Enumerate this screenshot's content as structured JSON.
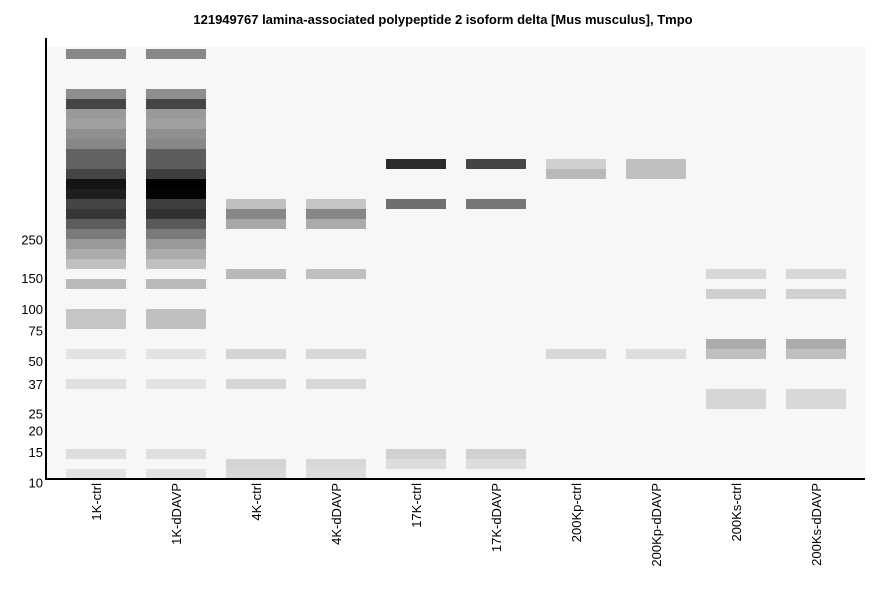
{
  "chart_data": {
    "type": "heatmap",
    "title": "121949767 lamina-associated polypeptide 2 isoform delta [Mus musculus], Tmpo",
    "xlabel": "",
    "ylabel": "",
    "y_scale": "log",
    "y_ticks": [
      250,
      150,
      100,
      75,
      50,
      37,
      25,
      20,
      15,
      10
    ],
    "categories": [
      "1K-ctrl",
      "1K-dDAVP",
      "4K-ctrl",
      "4K-dDAVP",
      "17K-ctrl",
      "17K-dDAVP",
      "200Kp-ctrl",
      "200Kp-dDAVP",
      "200Ks-ctrl",
      "200Ks-dDAVP"
    ],
    "colors": {
      "background": "#f6f7f6",
      "band": "#000000",
      "axis": "#000000"
    },
    "bands": [
      [
        {
          "row": 0,
          "intensity": 0.45
        },
        {
          "row": 4,
          "intensity": 0.42
        },
        {
          "row": 5,
          "intensity": 0.72
        },
        {
          "row": 6,
          "intensity": 0.38
        },
        {
          "row": 7,
          "intensity": 0.35
        },
        {
          "row": 8,
          "intensity": 0.42
        },
        {
          "row": 9,
          "intensity": 0.45
        },
        {
          "row": 10,
          "intensity": 0.6
        },
        {
          "row": 11,
          "intensity": 0.6
        },
        {
          "row": 12,
          "intensity": 0.72
        },
        {
          "row": 13,
          "intensity": 0.92
        },
        {
          "row": 14,
          "intensity": 0.88
        },
        {
          "row": 15,
          "intensity": 0.72
        },
        {
          "row": 16,
          "intensity": 0.78
        },
        {
          "row": 17,
          "intensity": 0.62
        },
        {
          "row": 18,
          "intensity": 0.5
        },
        {
          "row": 19,
          "intensity": 0.38
        },
        {
          "row": 20,
          "intensity": 0.3
        },
        {
          "row": 21,
          "intensity": 0.22
        },
        {
          "row": 23,
          "intensity": 0.25
        },
        {
          "row": 26,
          "intensity": 0.2
        },
        {
          "row": 27,
          "intensity": 0.2
        },
        {
          "row": 30,
          "intensity": 0.08
        },
        {
          "row": 33,
          "intensity": 0.09
        },
        {
          "row": 40,
          "intensity": 0.1
        },
        {
          "row": 42,
          "intensity": 0.08
        }
      ],
      [
        {
          "row": 0,
          "intensity": 0.45
        },
        {
          "row": 4,
          "intensity": 0.42
        },
        {
          "row": 5,
          "intensity": 0.72
        },
        {
          "row": 6,
          "intensity": 0.38
        },
        {
          "row": 7,
          "intensity": 0.35
        },
        {
          "row": 8,
          "intensity": 0.42
        },
        {
          "row": 9,
          "intensity": 0.45
        },
        {
          "row": 10,
          "intensity": 0.62
        },
        {
          "row": 11,
          "intensity": 0.62
        },
        {
          "row": 12,
          "intensity": 0.75
        },
        {
          "row": 13,
          "intensity": 1.0
        },
        {
          "row": 14,
          "intensity": 0.98
        },
        {
          "row": 15,
          "intensity": 0.75
        },
        {
          "row": 16,
          "intensity": 0.8
        },
        {
          "row": 17,
          "intensity": 0.64
        },
        {
          "row": 18,
          "intensity": 0.5
        },
        {
          "row": 19,
          "intensity": 0.38
        },
        {
          "row": 20,
          "intensity": 0.3
        },
        {
          "row": 21,
          "intensity": 0.22
        },
        {
          "row": 23,
          "intensity": 0.25
        },
        {
          "row": 26,
          "intensity": 0.22
        },
        {
          "row": 27,
          "intensity": 0.22
        },
        {
          "row": 30,
          "intensity": 0.08
        },
        {
          "row": 33,
          "intensity": 0.08
        },
        {
          "row": 40,
          "intensity": 0.09
        },
        {
          "row": 42,
          "intensity": 0.08
        }
      ],
      [
        {
          "row": 15,
          "intensity": 0.22
        },
        {
          "row": 16,
          "intensity": 0.45
        },
        {
          "row": 17,
          "intensity": 0.32
        },
        {
          "row": 22,
          "intensity": 0.25
        },
        {
          "row": 30,
          "intensity": 0.14
        },
        {
          "row": 33,
          "intensity": 0.13
        },
        {
          "row": 41,
          "intensity": 0.14
        },
        {
          "row": 42,
          "intensity": 0.12
        }
      ],
      [
        {
          "row": 15,
          "intensity": 0.2
        },
        {
          "row": 16,
          "intensity": 0.45
        },
        {
          "row": 17,
          "intensity": 0.3
        },
        {
          "row": 22,
          "intensity": 0.22
        },
        {
          "row": 30,
          "intensity": 0.12
        },
        {
          "row": 33,
          "intensity": 0.12
        },
        {
          "row": 41,
          "intensity": 0.12
        },
        {
          "row": 42,
          "intensity": 0.1
        }
      ],
      [
        {
          "row": 11,
          "intensity": 0.82
        },
        {
          "row": 15,
          "intensity": 0.55
        },
        {
          "row": 40,
          "intensity": 0.15
        },
        {
          "row": 41,
          "intensity": 0.1
        }
      ],
      [
        {
          "row": 11,
          "intensity": 0.72
        },
        {
          "row": 15,
          "intensity": 0.52
        },
        {
          "row": 40,
          "intensity": 0.15
        },
        {
          "row": 41,
          "intensity": 0.1
        }
      ],
      [
        {
          "row": 11,
          "intensity": 0.16
        },
        {
          "row": 12,
          "intensity": 0.25
        },
        {
          "row": 30,
          "intensity": 0.12
        }
      ],
      [
        {
          "row": 11,
          "intensity": 0.22
        },
        {
          "row": 12,
          "intensity": 0.22
        },
        {
          "row": 30,
          "intensity": 0.1
        }
      ],
      [
        {
          "row": 22,
          "intensity": 0.12
        },
        {
          "row": 24,
          "intensity": 0.16
        },
        {
          "row": 29,
          "intensity": 0.3
        },
        {
          "row": 30,
          "intensity": 0.22
        },
        {
          "row": 34,
          "intensity": 0.13
        },
        {
          "row": 35,
          "intensity": 0.13
        }
      ],
      [
        {
          "row": 22,
          "intensity": 0.12
        },
        {
          "row": 24,
          "intensity": 0.15
        },
        {
          "row": 29,
          "intensity": 0.3
        },
        {
          "row": 30,
          "intensity": 0.22
        },
        {
          "row": 34,
          "intensity": 0.12
        },
        {
          "row": 35,
          "intensity": 0.12
        }
      ]
    ]
  }
}
